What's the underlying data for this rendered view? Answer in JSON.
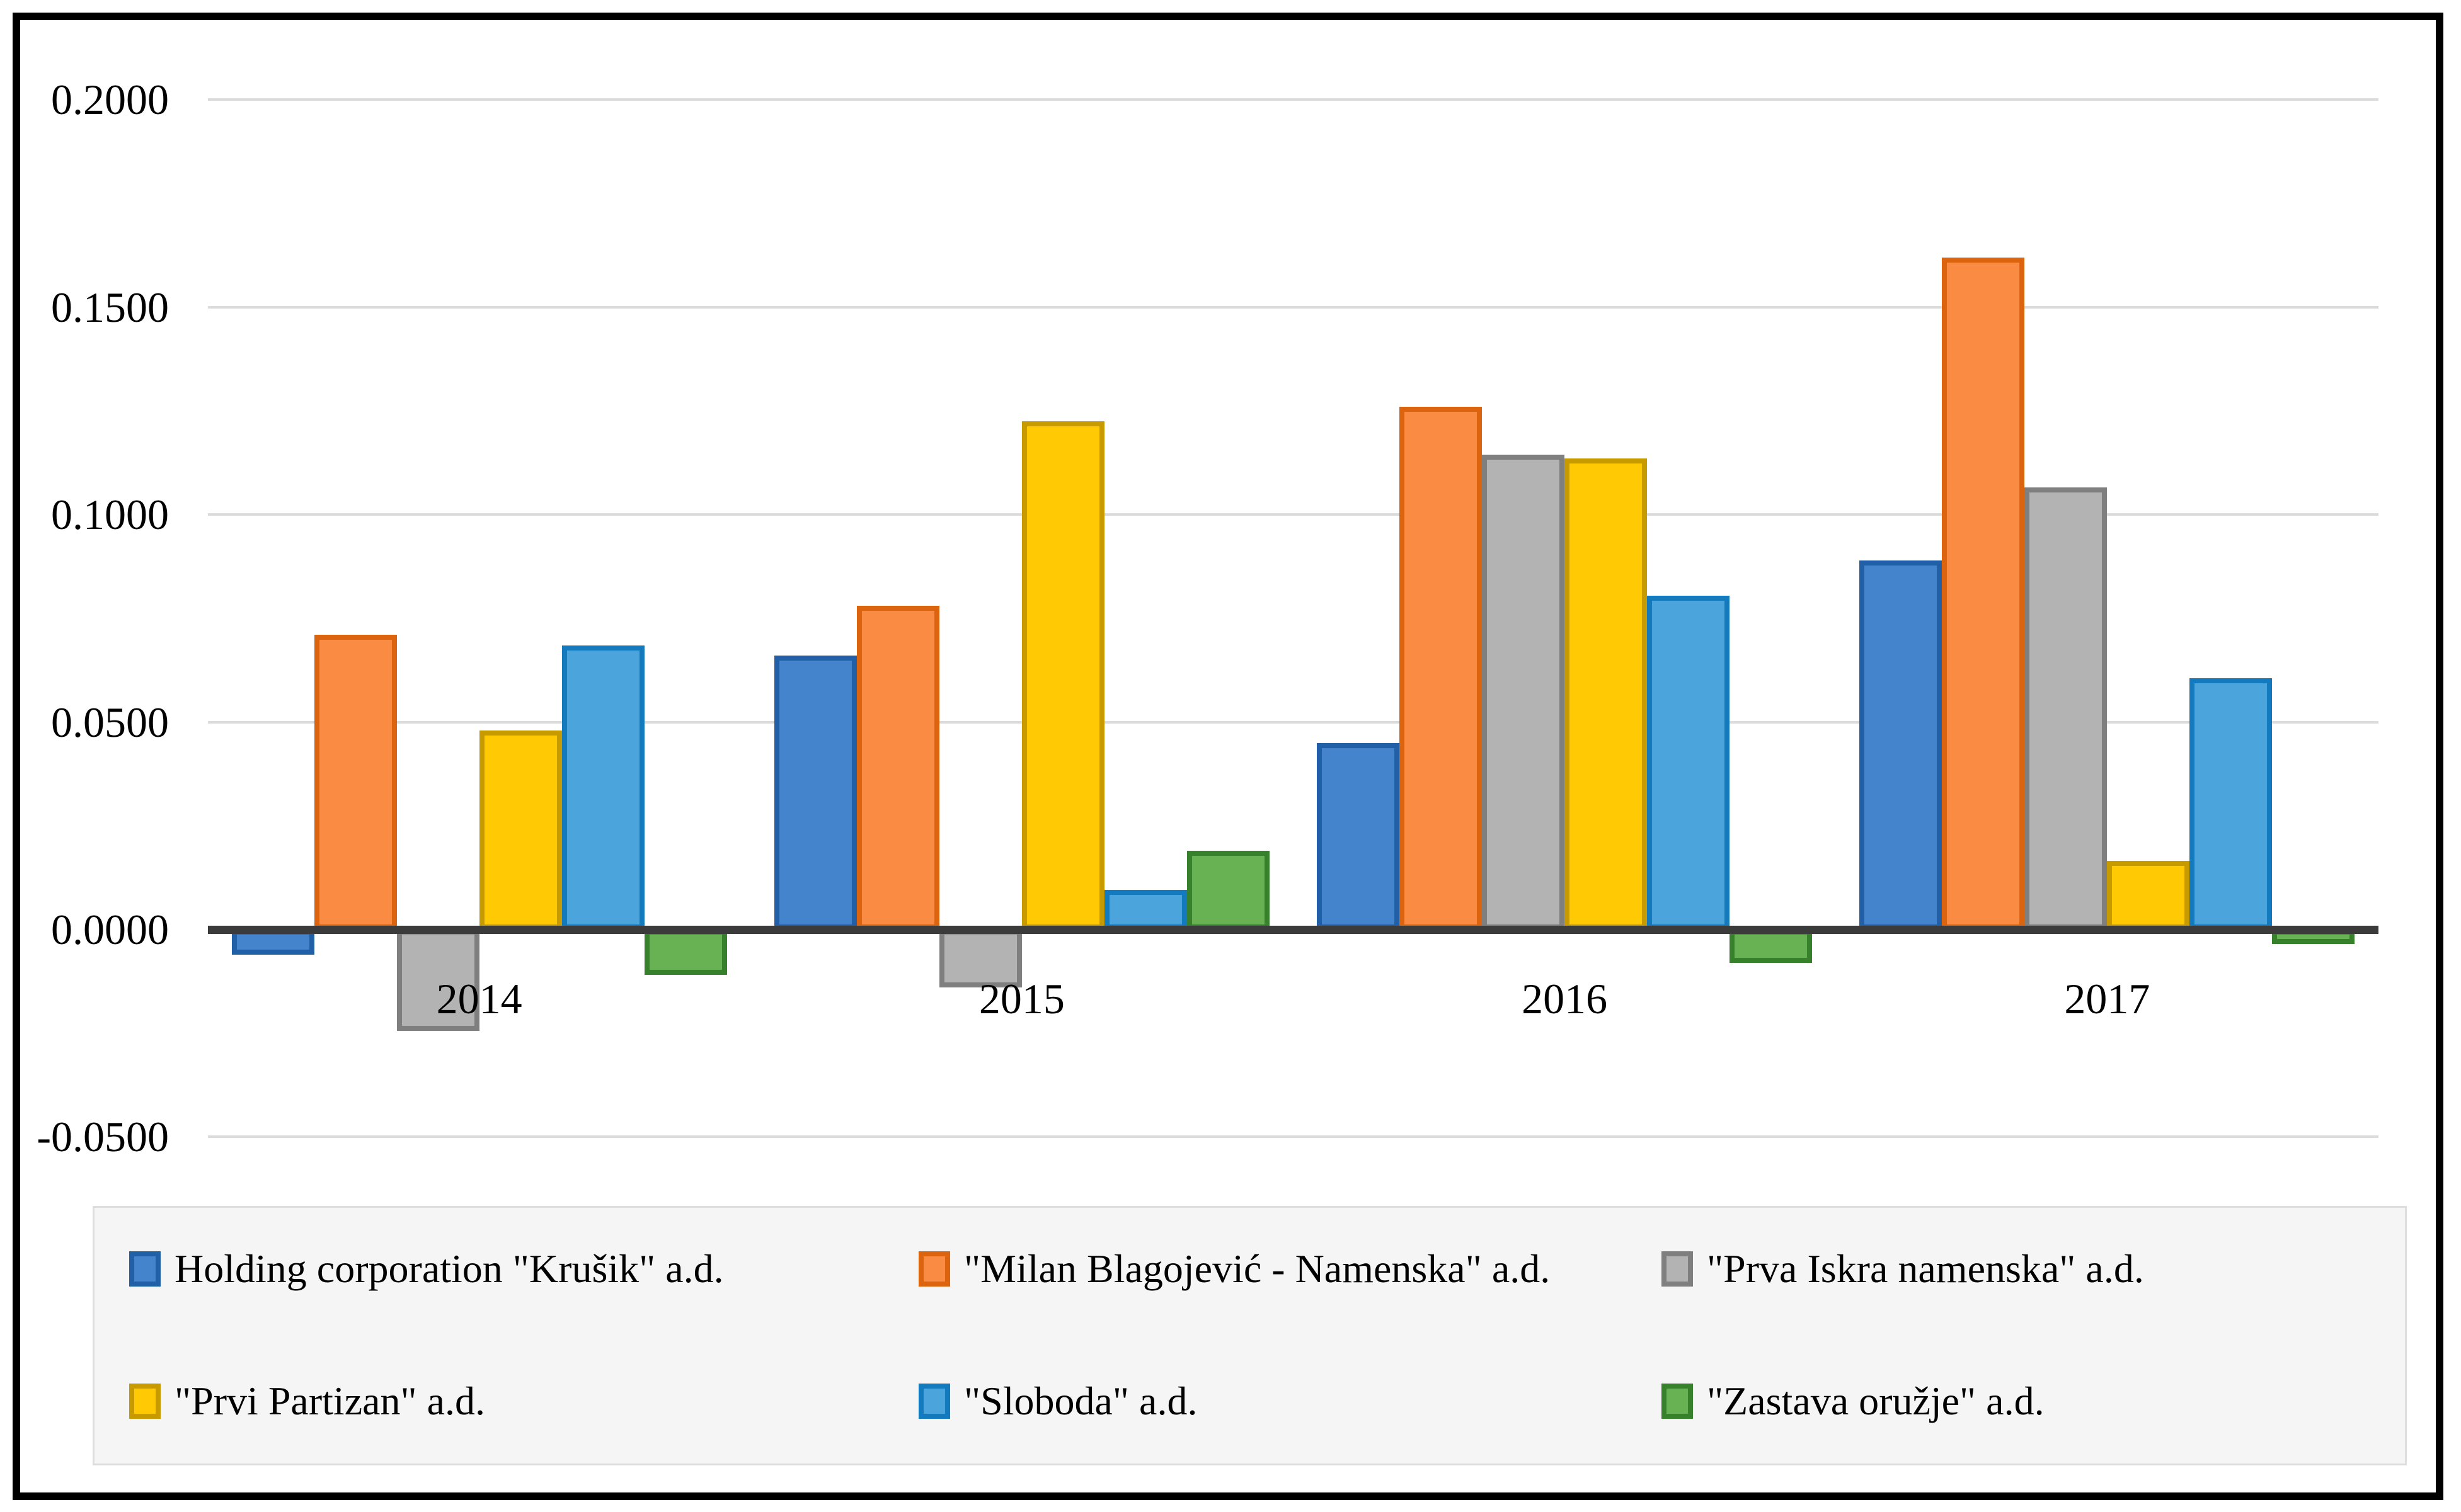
{
  "chart_data": {
    "type": "bar",
    "title": "",
    "categories": [
      "2014",
      "2015",
      "2016",
      "2017"
    ],
    "series": [
      {
        "name": "Holding corporation \"Krušik\" a.d.",
        "color": "#4484CC",
        "border_color": "#2160A6",
        "values": [
          -0.006,
          0.066,
          0.045,
          0.089
        ]
      },
      {
        "name": "\"Milan Blagojević - Namenska\" a.d.",
        "color": "#FA8B42",
        "border_color": "#DC640E",
        "values": [
          0.071,
          0.078,
          0.126,
          0.162
        ]
      },
      {
        "name": "\"Prva Iskra namenska\" a.d.",
        "color": "#B3B3B3",
        "border_color": "#7F7F7F",
        "values": [
          -0.0245,
          -0.014,
          0.1145,
          0.1065
        ]
      },
      {
        "name": "\"Prvi Partizan\" a.d.",
        "color": "#FFC903",
        "border_color": "#C79A00",
        "values": [
          0.048,
          0.1225,
          0.1135,
          0.0165
        ]
      },
      {
        "name": "\"Sloboda\" a.d.",
        "color": "#4BA5DC",
        "border_color": "#147ABE",
        "values": [
          0.0685,
          0.0095,
          0.0805,
          0.0605
        ]
      },
      {
        "name": "\"Zastava oružje\" a.d.",
        "color": "#68B254",
        "border_color": "#38812C",
        "values": [
          -0.011,
          0.019,
          -0.008,
          -0.0035
        ]
      }
    ],
    "y_axis": {
      "ticks": [
        {
          "label": "0.2000",
          "value": 0.2
        },
        {
          "label": "0.1500",
          "value": 0.15
        },
        {
          "label": "0.1000",
          "value": 0.1
        },
        {
          "label": "0.0500",
          "value": 0.05
        },
        {
          "label": "0.0000",
          "value": 0.0
        },
        {
          "label": "-0.0500",
          "value": -0.05
        }
      ],
      "range": [
        -0.05,
        0.2
      ]
    },
    "grid": true,
    "legend_position": "bottom"
  },
  "colors": {
    "background": "#FFFFFF",
    "frame": "#000000",
    "gridline": "#DBDBDB",
    "zero_axis": "#3B3B3B",
    "text": "#000000",
    "legend_background": "#F5F5F5",
    "legend_border": "#DEDEDE"
  }
}
